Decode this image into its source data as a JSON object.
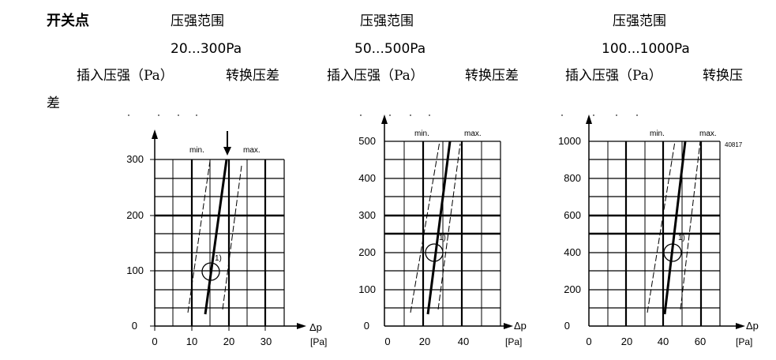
{
  "header": {
    "label": "开关点",
    "columns": [
      {
        "title": "压强范围",
        "range": "20...300Pa",
        "col_a": "插入压强（Pa）",
        "col_b": "转换压差"
      },
      {
        "title": "压强范围",
        "range": "50...500Pa",
        "col_a": "插入压强（Pa）",
        "col_b": "转换压差"
      },
      {
        "title": "压强范围",
        "range": "100...1000Pa",
        "col_a": "插入压强（Pa）",
        "col_b": "转换压"
      }
    ],
    "wrap_char": "差"
  },
  "charts": [
    {
      "y_ticks": [
        "0",
        "100",
        "200",
        "300"
      ],
      "x_ticks": [
        "0",
        "10",
        "20",
        "30"
      ],
      "min_label": "min.",
      "max_label": "max.",
      "marker_label": "1)",
      "x_axis_symbol": "Δp",
      "x_axis_unit": "[Pa]"
    },
    {
      "y_ticks": [
        "0",
        "100",
        "200",
        "300",
        "400",
        "500"
      ],
      "x_ticks": [
        "0",
        "20",
        "40"
      ],
      "min_label": "min.",
      "max_label": "max.",
      "marker_label": "1)",
      "x_axis_symbol": "Δp",
      "x_axis_unit": "[Pa]"
    },
    {
      "y_ticks": [
        "0",
        "200",
        "400",
        "600",
        "800",
        "1000"
      ],
      "x_ticks": [
        "0",
        "20",
        "40",
        "60"
      ],
      "min_label": "min.",
      "max_label": "max.",
      "marker_label": "1)",
      "x_axis_symbol": "Δp",
      "x_axis_unit": "[Pa]",
      "figure_id": "40817"
    }
  ]
}
